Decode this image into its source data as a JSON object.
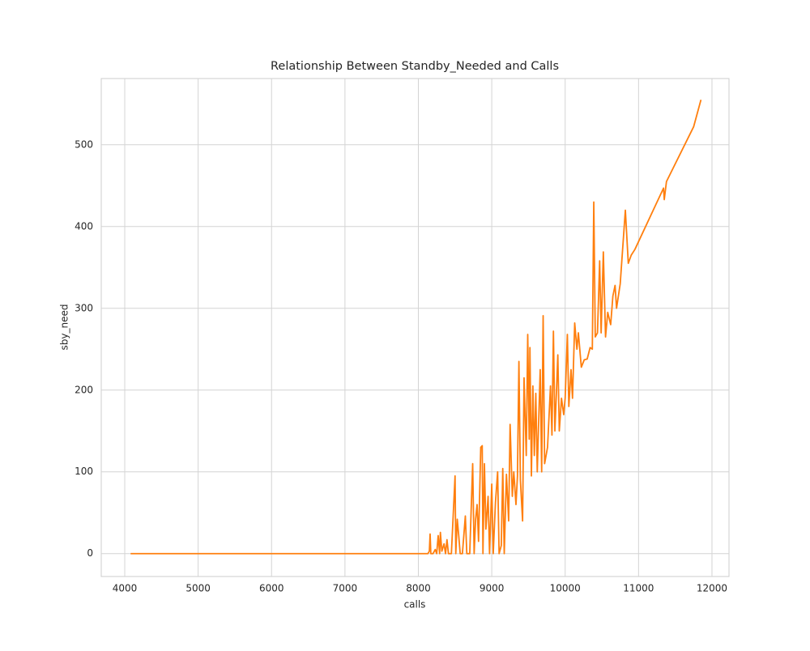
{
  "chart_data": {
    "type": "line",
    "title": "Relationship Between Standby_Needed and Calls",
    "xlabel": "calls",
    "ylabel": "sby_need",
    "x": [
      4080,
      8130,
      8150,
      8160,
      8170,
      8200,
      8230,
      8250,
      8270,
      8290,
      8300,
      8320,
      8350,
      8370,
      8390,
      8410,
      8450,
      8500,
      8510,
      8530,
      8550,
      8570,
      8600,
      8640,
      8660,
      8700,
      8740,
      8760,
      8780,
      8800,
      8820,
      8850,
      8870,
      8880,
      8900,
      8920,
      8950,
      8970,
      9000,
      9020,
      9050,
      9080,
      9100,
      9130,
      9150,
      9170,
      9200,
      9230,
      9250,
      9280,
      9300,
      9330,
      9350,
      9370,
      9390,
      9420,
      9440,
      9470,
      9490,
      9510,
      9520,
      9540,
      9560,
      9580,
      9600,
      9620,
      9640,
      9660,
      9680,
      9700,
      9720,
      9760,
      9800,
      9820,
      9840,
      9860,
      9880,
      9900,
      9920,
      9950,
      9980,
      10000,
      10030,
      10050,
      10080,
      10100,
      10130,
      10160,
      10180,
      10220,
      10260,
      10300,
      10340,
      10370,
      10390,
      10410,
      10440,
      10470,
      10490,
      10520,
      10550,
      10580,
      10620,
      10650,
      10680,
      10700,
      10750,
      10820,
      10860,
      10900,
      10950,
      11340,
      11350,
      11380,
      11750,
      11850
    ],
    "series": [
      {
        "name": "sby_need",
        "color": "#ff7f0e",
        "values": [
          0,
          0,
          3,
          24,
          0,
          0,
          5,
          0,
          22,
          0,
          26,
          3,
          12,
          0,
          17,
          0,
          0,
          95,
          0,
          42,
          22,
          0,
          0,
          46,
          0,
          0,
          110,
          0,
          42,
          60,
          15,
          130,
          132,
          0,
          110,
          30,
          70,
          0,
          85,
          0,
          62,
          100,
          0,
          10,
          104,
          0,
          97,
          40,
          158,
          70,
          100,
          60,
          95,
          235,
          90,
          40,
          215,
          120,
          268,
          140,
          252,
          95,
          205,
          120,
          196,
          100,
          165,
          225,
          100,
          291,
          110,
          130,
          205,
          145,
          272,
          150,
          195,
          243,
          150,
          190,
          170,
          190,
          268,
          180,
          225,
          190,
          282,
          250,
          270,
          228,
          237,
          238,
          252,
          250,
          430,
          265,
          270,
          358,
          270,
          369,
          265,
          295,
          280,
          315,
          328,
          300,
          330,
          420,
          355,
          365,
          372,
          447,
          433,
          455,
          522,
          555
        ]
      }
    ],
    "xlim": [
      3680,
      12232
    ],
    "ylim": [
      -28,
      581
    ],
    "xticks": [
      4000,
      5000,
      6000,
      7000,
      8000,
      9000,
      10000,
      11000,
      12000
    ],
    "yticks": [
      0,
      100,
      200,
      300,
      400,
      500
    ],
    "grid": true
  }
}
